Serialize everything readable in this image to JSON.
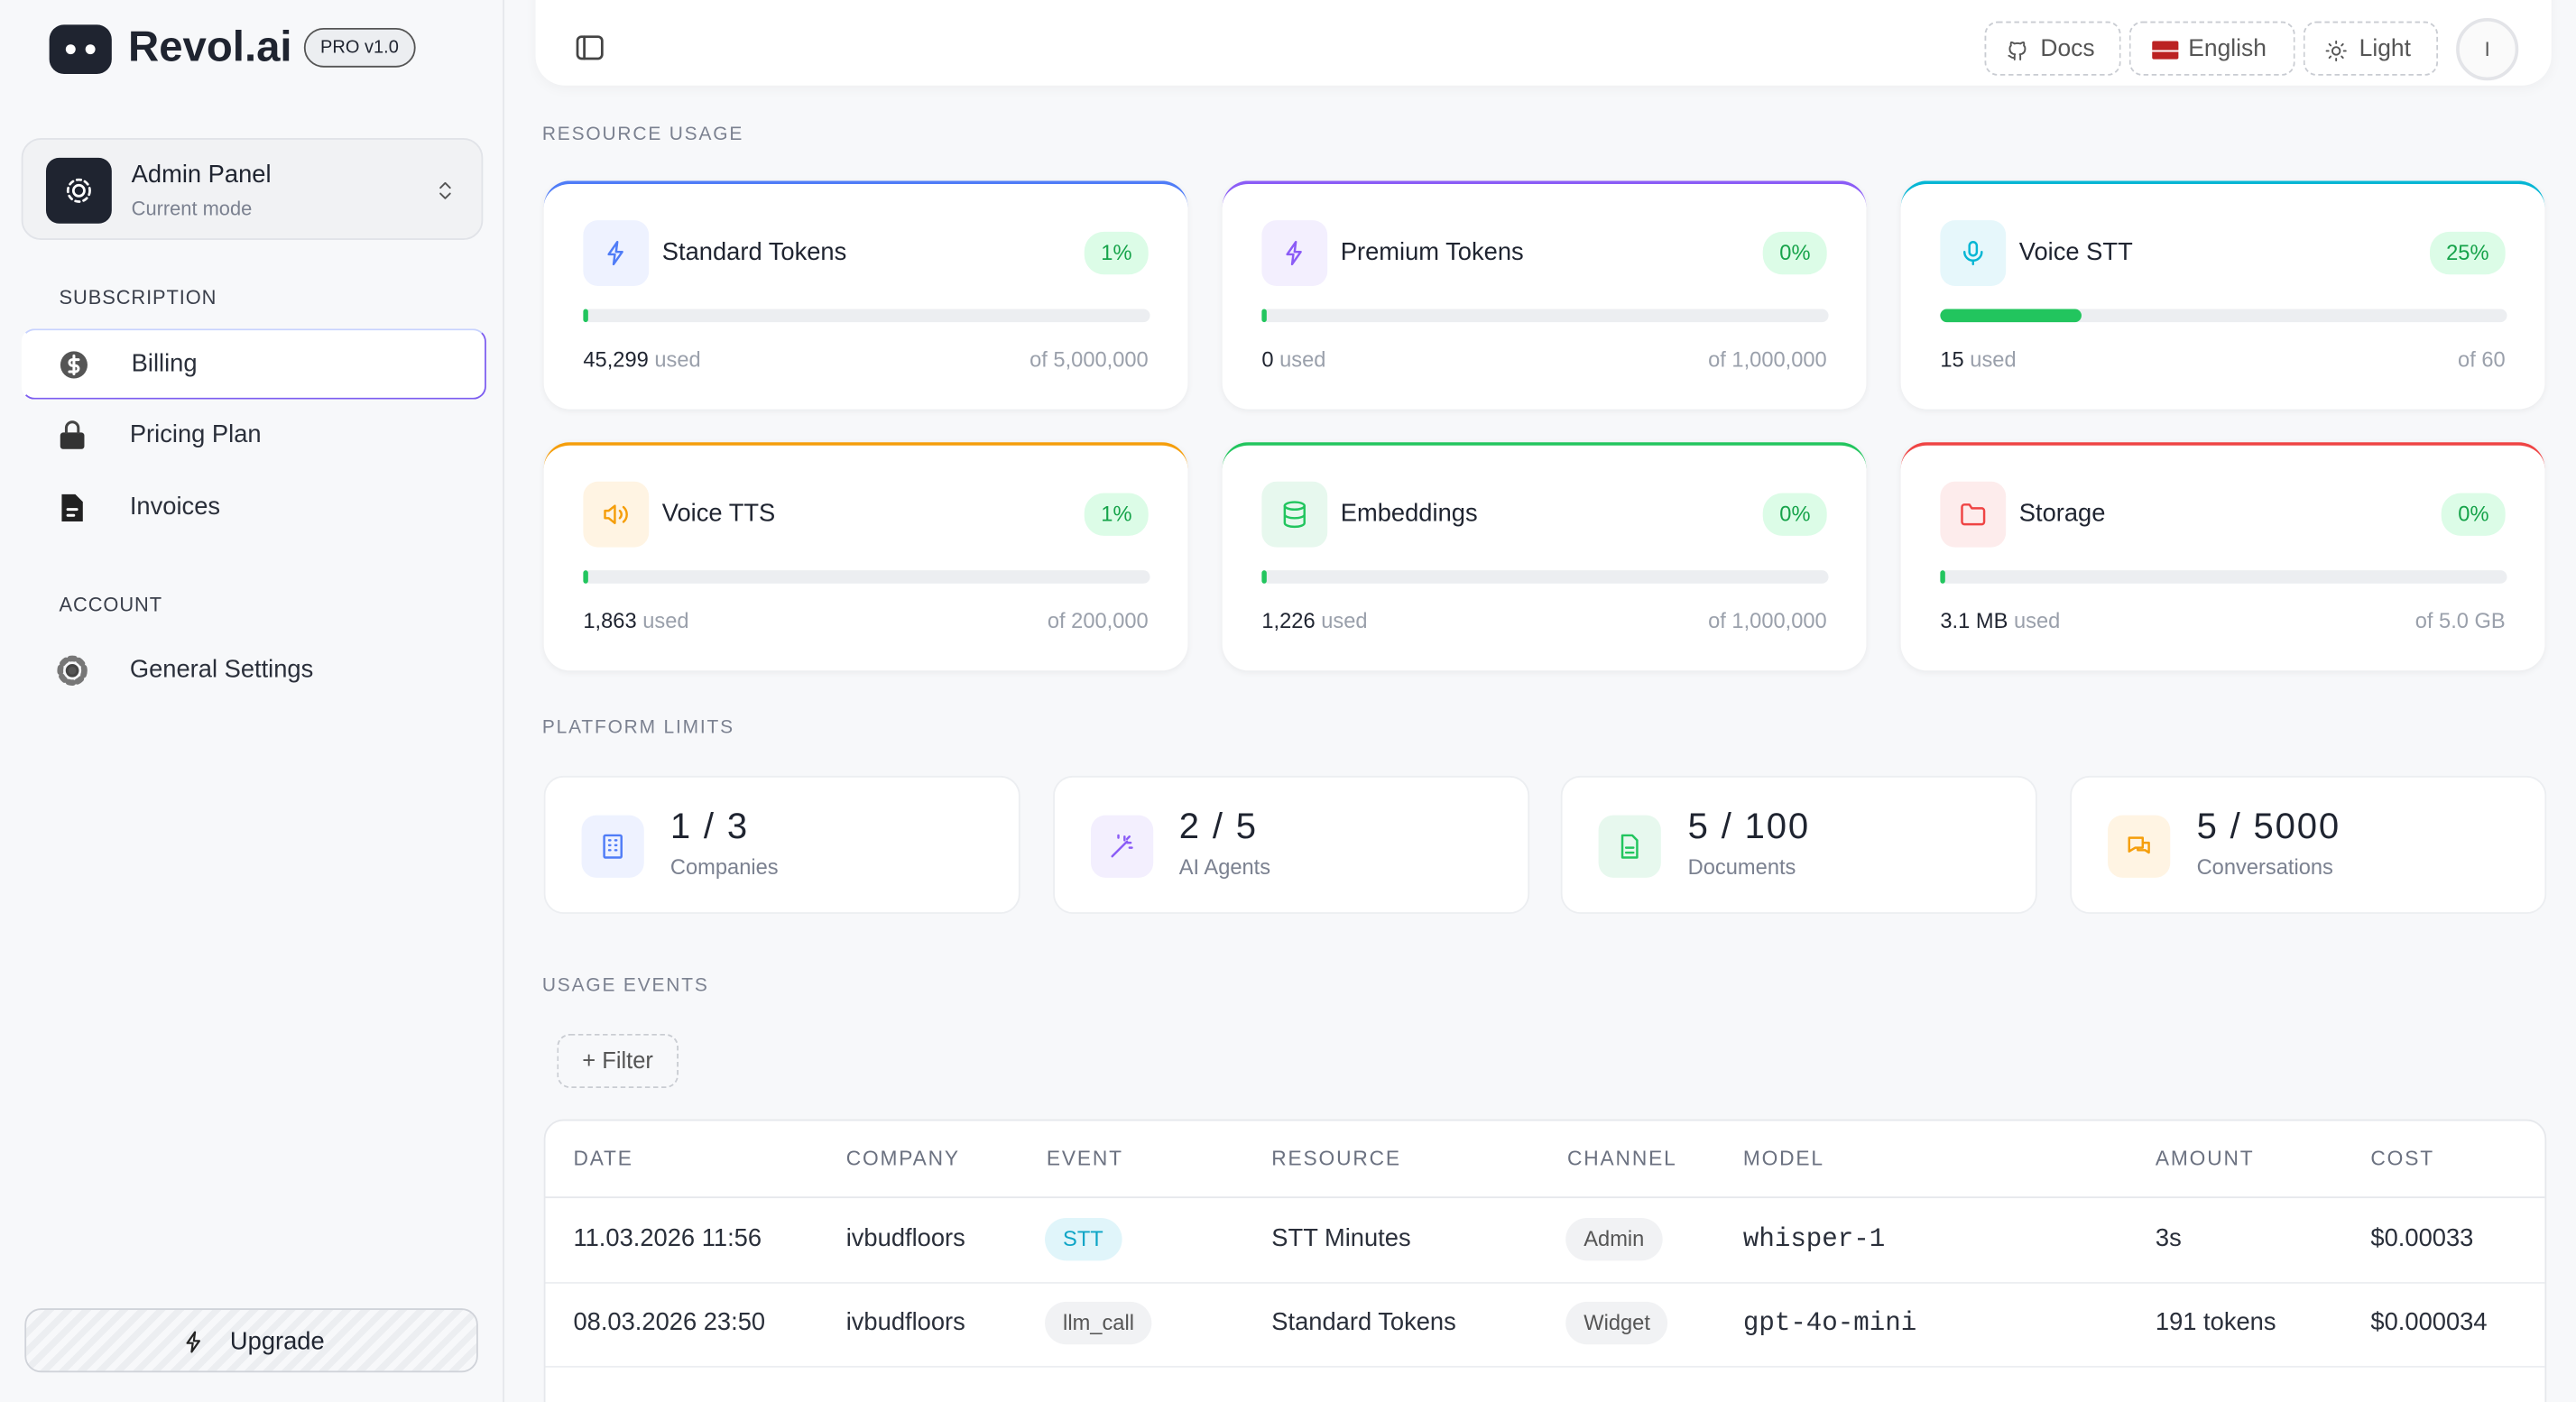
{
  "sidebar": {
    "brand": "Revol.ai",
    "version": "PRO v1.0",
    "mode": {
      "title": "Admin Panel",
      "subtitle": "Current mode"
    },
    "sections": [
      {
        "title": "SUBSCRIPTION",
        "items": [
          "Billing",
          "Pricing Plan",
          "Invoices"
        ]
      },
      {
        "title": "ACCOUNT",
        "items": [
          "General Settings"
        ]
      }
    ],
    "upgrade": "Upgrade"
  },
  "topbar": {
    "docs": "Docs",
    "language": "English",
    "theme": "Light",
    "avatar": "I"
  },
  "resource_usage": {
    "title": "RESOURCE USAGE",
    "cards": [
      {
        "name": "Standard Tokens",
        "percent": "1%",
        "used": "45,299",
        "used_label": "used",
        "limit": "of 5,000,000"
      },
      {
        "name": "Premium Tokens",
        "percent": "0%",
        "used": "0",
        "used_label": "used",
        "limit": "of 1,000,000"
      },
      {
        "name": "Voice STT",
        "percent": "25%",
        "used": "15",
        "used_label": "used",
        "limit": "of 60"
      },
      {
        "name": "Voice TTS",
        "percent": "1%",
        "used": "1,863",
        "used_label": "used",
        "limit": "of 200,000"
      },
      {
        "name": "Embeddings",
        "percent": "0%",
        "used": "1,226",
        "used_label": "used",
        "limit": "of 1,000,000"
      },
      {
        "name": "Storage",
        "percent": "0%",
        "used": "3.1 MB",
        "used_label": "used",
        "limit": "of 5.0 GB"
      }
    ]
  },
  "platform_limits": {
    "title": "PLATFORM LIMITS",
    "cards": [
      {
        "value": "1 / 3",
        "label": "Companies"
      },
      {
        "value": "2 / 5",
        "label": "AI Agents"
      },
      {
        "value": "5 / 100",
        "label": "Documents"
      },
      {
        "value": "5 / 5000",
        "label": "Conversations"
      }
    ]
  },
  "usage_events": {
    "title": "USAGE EVENTS",
    "filter": "+ Filter",
    "table": {
      "headers": [
        "DATE",
        "COMPANY",
        "EVENT",
        "RESOURCE",
        "CHANNEL",
        "MODEL",
        "AMOUNT",
        "COST"
      ],
      "rows": [
        [
          "11.03.2026 11:56",
          "ivbudfloors",
          "STT",
          "STT Minutes",
          "Admin",
          "whisper-1",
          "3s",
          "$0.00033"
        ],
        [
          "08.03.2026 23:50",
          "ivbudfloors",
          "llm_call",
          "Standard Tokens",
          "Widget",
          "gpt-4o-mini",
          "191 tokens",
          "$0.000034"
        ]
      ]
    }
  }
}
